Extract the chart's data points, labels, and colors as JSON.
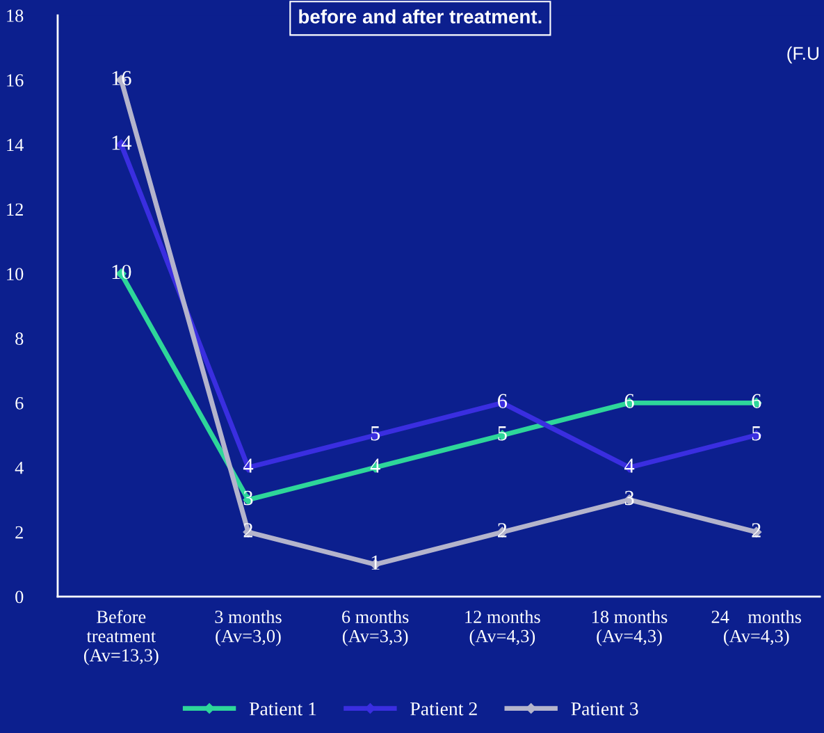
{
  "chart_data": {
    "type": "line",
    "title": "before and after treatment.",
    "annotations": [
      "(F.U"
    ],
    "categories": [
      "Before\ntreatment\n(Av=13,3)",
      "3 months\n(Av=3,0)",
      "6 months\n(Av=3,3)",
      "12 months\n(Av=4,3)",
      "18 months\n(Av=4,3)",
      "24    months\n(Av=4,3)"
    ],
    "series": [
      {
        "name": "Patient 1",
        "color": "#2ed69a",
        "values": [
          10,
          3,
          4,
          5,
          6,
          6
        ]
      },
      {
        "name": "Patient 2",
        "color": "#3a2ee0",
        "values": [
          14,
          4,
          5,
          6,
          4,
          5
        ]
      },
      {
        "name": "Patient 3",
        "color": "#b4b4cc",
        "values": [
          16,
          2,
          1,
          2,
          3,
          2
        ]
      }
    ],
    "ylim": [
      0,
      18
    ],
    "yticks": [
      0,
      2,
      4,
      6,
      8,
      10,
      12,
      14,
      16,
      18
    ],
    "grid": false,
    "legend": "bottom",
    "marker": "diamond",
    "line_style": "solid",
    "data_labels": true
  }
}
